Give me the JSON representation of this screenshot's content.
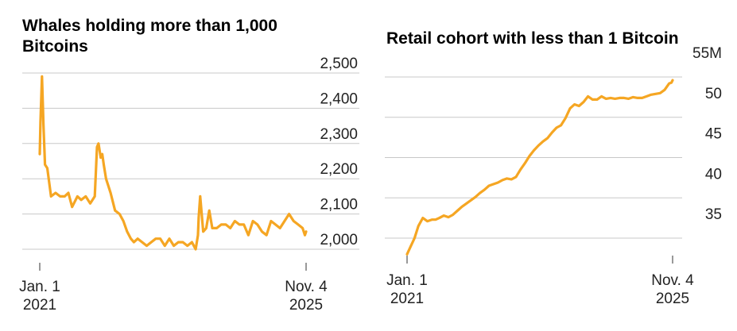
{
  "chart_data": [
    {
      "type": "line",
      "title": "Whales holding more than 1,000 Bitcoins",
      "color": "#f5a623",
      "grid": "horizontal",
      "ylim": [
        1965,
        2520
      ],
      "yticks": [
        "2,500",
        "2,400",
        "2,300",
        "2,200",
        "2,100",
        "2,000"
      ],
      "ytick_values": [
        2500,
        2400,
        2300,
        2200,
        2100,
        2000
      ],
      "xticks": [
        {
          "line1": "Jan. 1",
          "line2": "2021"
        },
        {
          "line1": "Nov. 4",
          "line2": "2025"
        }
      ],
      "x_range": [
        "2021-01-01",
        "2025-11-04"
      ],
      "series": [
        {
          "x": [
            "2021-01-01",
            "2021-01-06",
            "2021-01-16",
            "2021-01-26",
            "2021-02-05",
            "2021-02-20",
            "2021-03-17",
            "2021-04-16",
            "2021-05-16",
            "2021-06-15",
            "2021-07-10",
            "2021-08-04",
            "2021-09-08",
            "2021-10-03",
            "2021-11-02",
            "2021-12-02",
            "2022-01-01",
            "2022-01-16",
            "2022-01-26",
            "2022-02-10",
            "2022-02-20",
            "2022-03-02",
            "2022-03-17",
            "2022-04-16",
            "2022-05-16",
            "2022-06-15",
            "2022-07-10",
            "2022-08-04",
            "2022-08-29",
            "2022-09-18",
            "2022-10-13",
            "2022-11-12",
            "2022-12-12",
            "2023-01-11",
            "2023-02-10",
            "2023-03-12",
            "2023-04-11",
            "2023-05-11",
            "2023-06-10",
            "2023-07-10",
            "2023-08-09",
            "2023-09-08",
            "2023-10-08",
            "2023-11-02",
            "2023-11-17",
            "2023-11-22",
            "2023-12-02",
            "2023-12-22",
            "2024-01-11",
            "2024-01-31",
            "2024-02-20",
            "2024-03-21",
            "2024-04-20",
            "2024-05-20",
            "2024-06-19",
            "2024-07-19",
            "2024-08-18",
            "2024-09-17",
            "2024-10-17",
            "2024-11-16",
            "2024-12-16",
            "2025-01-15",
            "2025-02-14",
            "2025-03-16",
            "2025-04-15",
            "2025-05-15",
            "2025-06-14",
            "2025-07-14",
            "2025-08-13",
            "2025-09-12",
            "2025-10-12",
            "2025-10-27",
            "2025-11-04"
          ],
          "y": [
            2270,
            2360,
            2490,
            2350,
            2240,
            2230,
            2150,
            2160,
            2150,
            2150,
            2160,
            2120,
            2150,
            2140,
            2150,
            2130,
            2150,
            2290,
            2300,
            2260,
            2270,
            2240,
            2200,
            2160,
            2110,
            2100,
            2080,
            2050,
            2030,
            2020,
            2030,
            2020,
            2010,
            2020,
            2030,
            2030,
            2010,
            2030,
            2010,
            2020,
            2020,
            2010,
            2020,
            2000,
            2040,
            2090,
            2150,
            2050,
            2060,
            2110,
            2060,
            2060,
            2070,
            2070,
            2060,
            2080,
            2070,
            2070,
            2040,
            2080,
            2070,
            2050,
            2040,
            2080,
            2070,
            2060,
            2080,
            2100,
            2080,
            2070,
            2060,
            2040,
            2050
          ]
        }
      ]
    },
    {
      "type": "line",
      "title": "Retail cohort with less than 1 Bitcoin",
      "color": "#f5a623",
      "grid": "horizontal",
      "ylim": [
        31.8,
        56.0
      ],
      "yticks": [
        "55M",
        "50",
        "45",
        "40",
        "35"
      ],
      "ytick_values": [
        55,
        50,
        45,
        40,
        35
      ],
      "xticks": [
        {
          "line1": "Jan. 1",
          "line2": "2021"
        },
        {
          "line1": "Nov. 4",
          "line2": "2025"
        }
      ],
      "x_range": [
        "2021-01-01",
        "2025-11-04"
      ],
      "series": [
        {
          "x": [
            "2021-01-01",
            "2021-01-16",
            "2021-02-20",
            "2021-03-17",
            "2021-04-16",
            "2021-05-16",
            "2021-06-15",
            "2021-07-10",
            "2021-08-04",
            "2021-09-03",
            "2021-10-03",
            "2021-11-02",
            "2021-12-02",
            "2022-01-01",
            "2022-01-31",
            "2022-03-02",
            "2022-04-01",
            "2022-05-01",
            "2022-05-31",
            "2022-06-30",
            "2022-07-30",
            "2022-08-29",
            "2022-09-28",
            "2022-10-28",
            "2022-11-27",
            "2022-12-27",
            "2023-01-26",
            "2023-02-25",
            "2023-03-27",
            "2023-04-26",
            "2023-05-26",
            "2023-06-25",
            "2023-07-25",
            "2023-08-24",
            "2023-09-23",
            "2023-10-23",
            "2023-11-22",
            "2023-12-22",
            "2024-01-21",
            "2024-02-20",
            "2024-03-21",
            "2024-04-20",
            "2024-05-20",
            "2024-06-19",
            "2024-07-19",
            "2024-08-18",
            "2024-09-17",
            "2024-10-17",
            "2024-11-16",
            "2024-12-16",
            "2025-01-15",
            "2025-02-14",
            "2025-03-16",
            "2025-04-15",
            "2025-05-15",
            "2025-06-14",
            "2025-07-14",
            "2025-08-13",
            "2025-09-12",
            "2025-10-12",
            "2025-10-27",
            "2025-11-04"
          ],
          "y": [
            33.0,
            33.6,
            35.0,
            36.5,
            37.5,
            37.1,
            37.3,
            37.3,
            37.5,
            37.8,
            37.6,
            37.9,
            38.4,
            38.9,
            39.3,
            39.7,
            40.1,
            40.6,
            41.0,
            41.5,
            41.7,
            41.9,
            42.2,
            42.4,
            42.3,
            42.6,
            43.5,
            44.3,
            45.2,
            45.9,
            46.5,
            47.0,
            47.4,
            48.1,
            48.7,
            49.0,
            49.9,
            51.1,
            51.6,
            51.4,
            51.9,
            52.6,
            52.2,
            52.2,
            52.6,
            52.3,
            52.4,
            52.3,
            52.4,
            52.4,
            52.3,
            52.5,
            52.4,
            52.4,
            52.6,
            52.8,
            52.9,
            53.0,
            53.4,
            54.2,
            54.3,
            54.6
          ]
        }
      ]
    }
  ]
}
